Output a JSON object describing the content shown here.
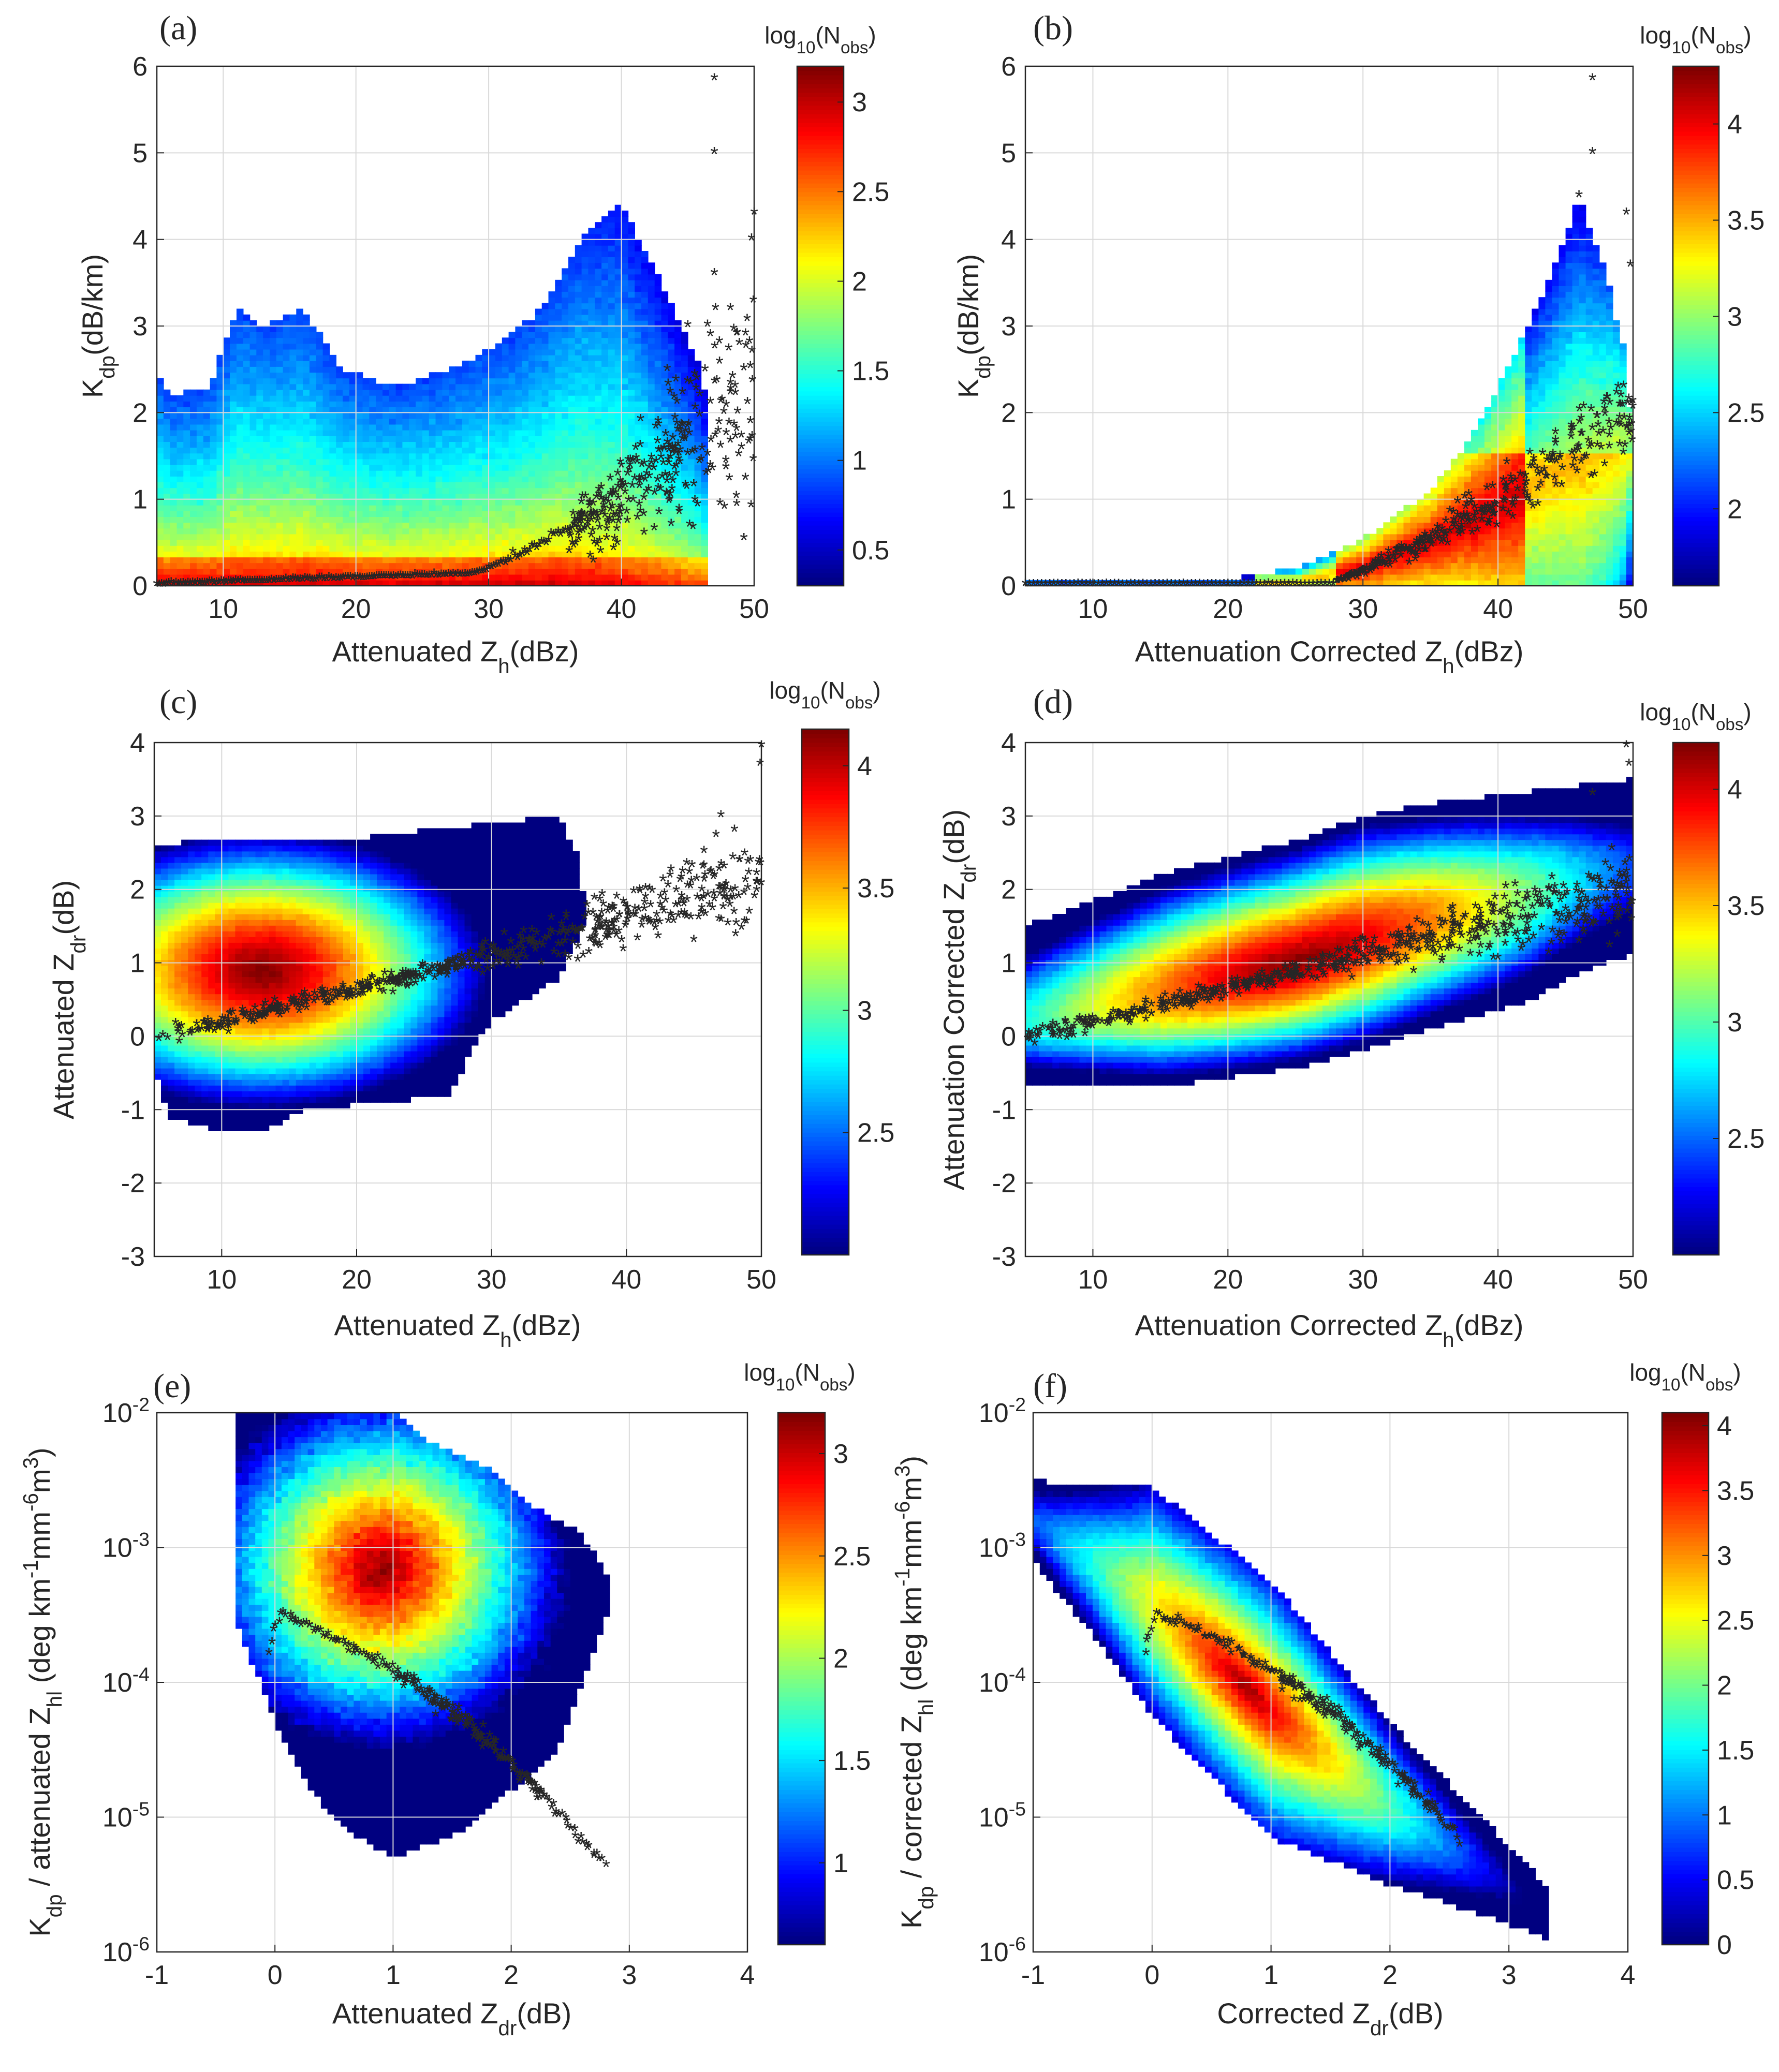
{
  "figure_type": "six-panel 2D histogram (density) plots with overlaid scatter",
  "chart_data": [
    {
      "panel": "(a)",
      "type": "heatmap",
      "xlabel": {
        "pre": "Attenuated Z",
        "sub": "h",
        "post": "(dBz)"
      },
      "ylabel": {
        "pre": "K",
        "sub": "dp",
        "post": "(dB/km)"
      },
      "xlim": [
        5,
        50
      ],
      "ylim": [
        0,
        6
      ],
      "yscale": "linear",
      "xticks": [
        "10",
        "20",
        "30",
        "40",
        "50"
      ],
      "yticks": [
        "0",
        "1",
        "2",
        "3",
        "4",
        "5",
        "6"
      ],
      "colorbar": {
        "label": {
          "pre": "log",
          "sub": "10",
          "mid": "(N",
          "sub2": "obs",
          "post": ")"
        },
        "range": [
          0.3,
          3.2
        ],
        "ticks": [
          "0.5",
          "1",
          "1.5",
          "2",
          "2.5",
          "3"
        ]
      },
      "density": {
        "shape": "broad band across all Z_h, upper envelope ~2.3-3.3 dB/km, rising to ~4.4 dB/km near 40 dBz; peak counts (red) concentrated near K_dp 0-0.4"
      },
      "scatter": "black asterisks: K_dp ~0 up to 30 dBz, rising to ~1-3.5 dB/km at 40-50 dBz (outliers to ~5.8)",
      "grid": true
    },
    {
      "panel": "(b)",
      "type": "heatmap",
      "xlabel": {
        "pre": "Attenuation Corrected Z",
        "sub": "h",
        "post": "(dBz)"
      },
      "ylabel": {
        "pre": "K",
        "sub": "dp",
        "post": "(dB/km)"
      },
      "xlim": [
        5,
        50
      ],
      "ylim": [
        0,
        6
      ],
      "yscale": "linear",
      "xticks": [
        "10",
        "20",
        "30",
        "40",
        "50"
      ],
      "yticks": [
        "0",
        "1",
        "2",
        "3",
        "4",
        "5",
        "6"
      ],
      "colorbar": {
        "label": {
          "pre": "log",
          "sub": "10",
          "mid": "(N",
          "sub2": "obs",
          "post": ")"
        },
        "range": [
          1.6,
          4.3
        ],
        "ticks": [
          "2",
          "2.5",
          "3",
          "3.5",
          "4"
        ]
      },
      "density": {
        "shape": "narrow near zero until ~25 dBz, then exponential-like rise to ~4.5 dB/km at 46 dBz"
      },
      "scatter": "black asterisks following the rising curve from ~30 to 50 dBz",
      "grid": true
    },
    {
      "panel": "(c)",
      "type": "heatmap",
      "xlabel": {
        "pre": "Attenuated Z",
        "sub": "h",
        "post": "(dBz)"
      },
      "ylabel": {
        "pre": "Attenuated Z",
        "sub": "dr",
        "post": "(dB)"
      },
      "xlim": [
        5,
        50
      ],
      "ylim": [
        -3,
        4
      ],
      "yscale": "linear",
      "xticks": [
        "10",
        "20",
        "30",
        "40",
        "50"
      ],
      "yticks": [
        "-3",
        "-2",
        "-1",
        "0",
        "1",
        "2",
        "3",
        "4"
      ],
      "colorbar": {
        "label": {
          "pre": "log",
          "sub": "10",
          "mid": "(N",
          "sub2": "obs",
          "post": ")"
        },
        "range": [
          2.0,
          4.15
        ],
        "ticks": [
          "2.5",
          "3",
          "3.5",
          "4"
        ]
      },
      "density": {
        "shape": "block from 5-36 dBz spanning Z_dr -1.3 to 2.9 dB, peak near (13 dBz, 1 dB)"
      },
      "scatter": "black asterisks rising from ~0 dB at 5 dBz to ~2-4 dB at 50 dBz",
      "grid": true
    },
    {
      "panel": "(d)",
      "type": "heatmap",
      "xlabel": {
        "pre": "Attenuation Corrected Z",
        "sub": "h",
        "post": "(dBz)"
      },
      "ylabel": {
        "pre": "Attenuation Corrected Z",
        "sub": "dr",
        "post": "(dB)"
      },
      "xlim": [
        5,
        50
      ],
      "ylim": [
        -3,
        4
      ],
      "yscale": "linear",
      "xticks": [
        "10",
        "20",
        "30",
        "40",
        "50"
      ],
      "yticks": [
        "-3",
        "-2",
        "-1",
        "0",
        "1",
        "2",
        "3",
        "4"
      ],
      "colorbar": {
        "label": {
          "pre": "log",
          "sub": "10",
          "mid": "(N",
          "sub2": "obs",
          "post": ")"
        },
        "range": [
          2.0,
          4.2
        ],
        "ticks": [
          "2.5",
          "3",
          "3.5",
          "4"
        ]
      },
      "density": {
        "shape": "tilted ellipse rising with Z_h, peak near (25 dBz, 1 dB)"
      },
      "scatter": "black asterisks rising from ~0 dB at 5 dBz to ~2.5 dB at 50 dBz",
      "grid": true
    },
    {
      "panel": "(e)",
      "type": "heatmap",
      "xlabel": {
        "pre": "Attenuated Z",
        "sub": "dr",
        "post": "(dB)"
      },
      "ylabel": {
        "pre": "K",
        "sub": "dp",
        "mid": " / attenuated Z",
        "sub2": "hl",
        "post": " (deg km",
        "sup1": "-1",
        "post2": "mm",
        "sup2": "-6",
        "post3": "m",
        "sup3": "3",
        "post4": ")"
      },
      "xlim": [
        -1,
        4
      ],
      "ylim": [
        1e-06,
        0.01
      ],
      "yscale": "log",
      "xticks": [
        "-1",
        "0",
        "1",
        "2",
        "3",
        "4"
      ],
      "yticks": [
        {
          "base": "10",
          "exp": "-6"
        },
        {
          "base": "10",
          "exp": "-5"
        },
        {
          "base": "10",
          "exp": "-4"
        },
        {
          "base": "10",
          "exp": "-3"
        },
        {
          "base": "10",
          "exp": "-2"
        }
      ],
      "colorbar": {
        "label": {
          "pre": "log",
          "sub": "10",
          "mid": "(N",
          "sub2": "obs",
          "post": ")"
        },
        "range": [
          0.6,
          3.2
        ],
        "ticks": [
          "1",
          "1.5",
          "2",
          "2.5",
          "3"
        ]
      },
      "density": {
        "shape": "broad blob from Z_dr -0.3 to 2.8 dB, peak near (0.9 dB, 7e-4)"
      },
      "scatter": "black asterisk curve from (0, 3e-4) decreasing to (2.8 dB, 4e-6)",
      "grid": true
    },
    {
      "panel": "(f)",
      "type": "heatmap",
      "xlabel": {
        "pre": "Corrected Z",
        "sub": "dr",
        "post": "(dB)"
      },
      "ylabel": {
        "pre": "K",
        "sub": "dp",
        "mid": " / corrected Z",
        "sub2": "hl",
        "post": " (deg km",
        "sup1": "-1",
        "post2": "mm",
        "sup2": "-6",
        "post3": "m",
        "sup3": "3",
        "post4": ")"
      },
      "xlim": [
        -1,
        4
      ],
      "ylim": [
        1e-06,
        0.01
      ],
      "yscale": "log",
      "xticks": [
        "-1",
        "0",
        "1",
        "2",
        "3",
        "4"
      ],
      "yticks": [
        {
          "base": "10",
          "exp": "-6"
        },
        {
          "base": "10",
          "exp": "-5"
        },
        {
          "base": "10",
          "exp": "-4"
        },
        {
          "base": "10",
          "exp": "-3"
        },
        {
          "base": "10",
          "exp": "-2"
        }
      ],
      "colorbar": {
        "label": {
          "pre": "log",
          "sub": "10",
          "mid": "(N",
          "sub2": "obs",
          "post": ")"
        },
        "range": [
          0.0,
          4.1
        ],
        "ticks": [
          "0",
          "0.5",
          "1",
          "1.5",
          "2",
          "2.5",
          "3",
          "3.5",
          "4"
        ]
      },
      "density": {
        "shape": "diagonal band from (-1 dB, 3e-3) down to (3.3 dB, 2e-6), peak near (0.8 dB, 6e-5)"
      },
      "scatter": "black asterisk curve from (0, 3e-4) decreasing to (2.6 dB, 1e-5)",
      "grid": true
    }
  ]
}
